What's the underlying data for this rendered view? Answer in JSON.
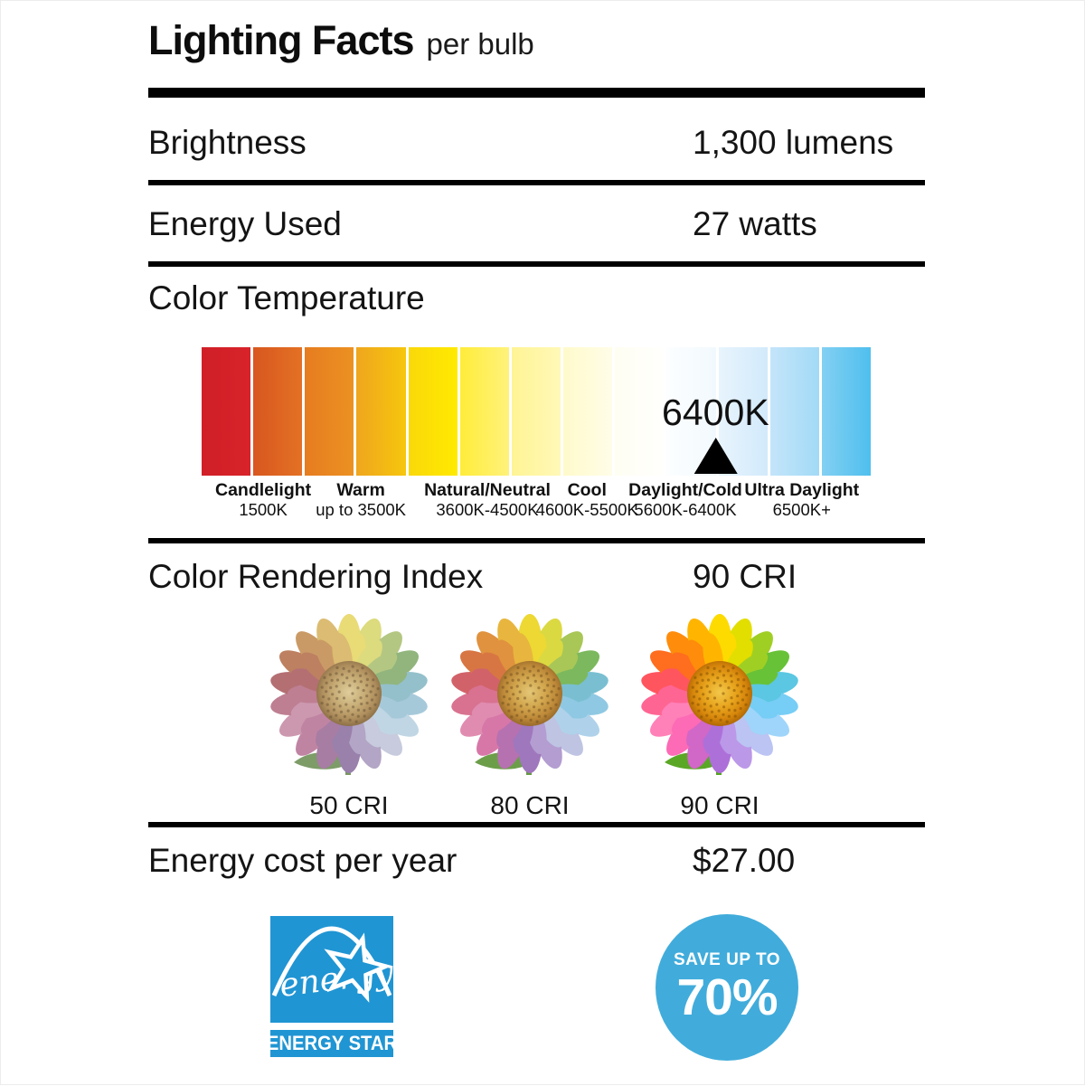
{
  "title": {
    "main": "Lighting Facts",
    "suffix": "per bulb"
  },
  "rows": {
    "brightness": {
      "label": "Brightness",
      "value": "1,300 lumens"
    },
    "energy_used": {
      "label": "Energy Used",
      "value": "27 watts"
    },
    "color_temp": {
      "label": "Color Temperature"
    },
    "cri": {
      "label": "Color Rendering Index",
      "value": "90 CRI"
    },
    "energy_cost": {
      "label": "Energy cost per year",
      "value": "$27.00"
    }
  },
  "color_scale": {
    "marker": {
      "label": "6400K",
      "position_pct": 76.8
    },
    "segments": [
      {
        "from": "#D01F27",
        "to": "#D8232A"
      },
      {
        "from": "#D8571F",
        "to": "#E37124"
      },
      {
        "from": "#E67C20",
        "to": "#EC9122"
      },
      {
        "from": "#EFA61E",
        "to": "#F6C60D"
      },
      {
        "from": "#FAD80A",
        "to": "#FFEA00"
      },
      {
        "from": "#FFEC3A",
        "to": "#FFF27B"
      },
      {
        "from": "#FFF494",
        "to": "#FFF8B8"
      },
      {
        "from": "#FFFACB",
        "to": "#FFFDE8"
      },
      {
        "from": "#FFFEF2",
        "to": "#FFFFFD"
      },
      {
        "from": "#FCFEFF",
        "to": "#F2F9FE"
      },
      {
        "from": "#E8F4FD",
        "to": "#D2EAFB"
      },
      {
        "from": "#C4E5FA",
        "to": "#A2DAF6"
      },
      {
        "from": "#83D0F2",
        "to": "#4FBFEE"
      }
    ],
    "categories": [
      {
        "name": "Candlelight",
        "range": "1500K",
        "center_pct": 9.2
      },
      {
        "name": "Warm",
        "range": "up to 3500K",
        "center_pct": 23.8
      },
      {
        "name": "Natural/Neutral",
        "range": "3600K-4500K",
        "center_pct": 42.7
      },
      {
        "name": "Cool",
        "range": "4600K-5500K",
        "center_pct": 57.6
      },
      {
        "name": "Daylight/Cold",
        "range": "5600K-6400K",
        "center_pct": 72.3
      },
      {
        "name": "Ultra Daylight",
        "range": "6500K+",
        "center_pct": 89.7
      }
    ]
  },
  "cri_examples": [
    {
      "label": "50 CRI",
      "filter": "saturate(0.45) brightness(1.03)"
    },
    {
      "label": "80 CRI",
      "filter": "saturate(0.75)"
    },
    {
      "label": "90 CRI",
      "filter": "saturate(1.15)"
    }
  ],
  "flower": {
    "petal_colors": [
      "#F7DA00",
      "#DFDC12",
      "#A3CC37",
      "#6FBE45",
      "#66C4DC",
      "#7FCBEE",
      "#A5D4F4",
      "#BCC4EC",
      "#B89ADF",
      "#A873CE",
      "#C76BBE",
      "#EF6FB0",
      "#F585B5",
      "#F26A92",
      "#EF5A63",
      "#F2702C",
      "#F68E1E",
      "#F8B515"
    ]
  },
  "badges": {
    "energy_star": {
      "script_text": "energy",
      "bar_text": "ENERGY STAR",
      "color": "#2095D3"
    },
    "save": {
      "line1": "SAVE UP TO",
      "line2": "70%",
      "color": "#41ACDB"
    }
  }
}
